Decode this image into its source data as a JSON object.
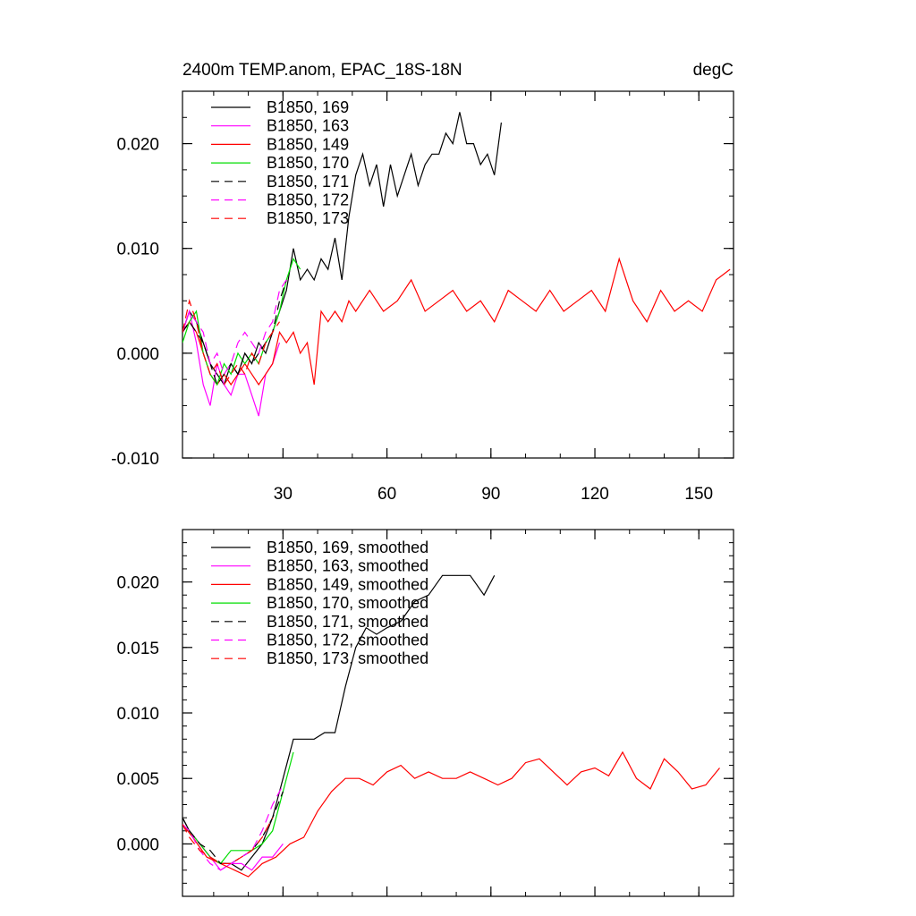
{
  "chart_data": [
    {
      "type": "line",
      "title": "2400m TEMP.anom, EPAC_18S-18N",
      "units": "degC",
      "xlim": [
        1,
        160
      ],
      "ylim": [
        -0.01,
        0.025
      ],
      "xticks": [
        30,
        60,
        90,
        120,
        150
      ],
      "xtick_labels": [
        "30",
        "60",
        "90",
        "120",
        "150"
      ],
      "yticks": [
        -0.01,
        0.0,
        0.01,
        0.02
      ],
      "ytick_labels": [
        "-0.010",
        "0.000",
        "0.010",
        "0.020"
      ],
      "legend_position": "top-left",
      "series": [
        {
          "name": "B1850, 169",
          "color": "#000000",
          "dash": "solid",
          "x": [
            1,
            3,
            5,
            7,
            9,
            11,
            13,
            15,
            17,
            19,
            21,
            23,
            25,
            27,
            29,
            31,
            33,
            35,
            37,
            39,
            41,
            43,
            45,
            47,
            49,
            51,
            53,
            55,
            57,
            59,
            61,
            63,
            65,
            67,
            69,
            71,
            73,
            75,
            77,
            79,
            81,
            83,
            85,
            87,
            89,
            91,
            93
          ],
          "y": [
            0.002,
            0.004,
            0.003,
            0.001,
            -0.001,
            -0.002,
            -0.003,
            -0.001,
            -0.002,
            0.0,
            -0.001,
            0.001,
            0.0,
            0.002,
            0.004,
            0.006,
            0.01,
            0.007,
            0.008,
            0.007,
            0.009,
            0.008,
            0.011,
            0.007,
            0.013,
            0.017,
            0.019,
            0.016,
            0.018,
            0.014,
            0.018,
            0.015,
            0.017,
            0.019,
            0.016,
            0.018,
            0.019,
            0.019,
            0.021,
            0.02,
            0.023,
            0.02,
            0.02,
            0.018,
            0.019,
            0.017,
            0.022
          ]
        },
        {
          "name": "B1850, 163",
          "color": "#ff00ff",
          "dash": "solid",
          "x": [
            1,
            3,
            5,
            7,
            9,
            11,
            13,
            15,
            17,
            19,
            21,
            23,
            25,
            27,
            29
          ],
          "y": [
            0.002,
            0.004,
            0.001,
            -0.003,
            -0.005,
            -0.001,
            -0.003,
            -0.004,
            -0.002,
            -0.002,
            -0.004,
            -0.006,
            -0.002,
            -0.001,
            0.001
          ]
        },
        {
          "name": "B1850, 149",
          "color": "#ff0000",
          "dash": "solid",
          "x": [
            1,
            3,
            5,
            7,
            9,
            11,
            13,
            15,
            17,
            19,
            21,
            23,
            25,
            27,
            29,
            31,
            33,
            35,
            37,
            39,
            41,
            43,
            45,
            47,
            49,
            51,
            55,
            59,
            63,
            67,
            71,
            75,
            79,
            83,
            87,
            91,
            95,
            99,
            103,
            107,
            111,
            115,
            119,
            123,
            127,
            131,
            135,
            139,
            143,
            147,
            151,
            155,
            159
          ],
          "y": [
            0.002,
            0.003,
            0.002,
            0.0,
            -0.002,
            -0.003,
            -0.002,
            -0.003,
            -0.002,
            -0.001,
            -0.002,
            -0.003,
            -0.002,
            -0.001,
            0.002,
            0.001,
            0.002,
            0.0,
            0.001,
            -0.003,
            0.004,
            0.003,
            0.004,
            0.003,
            0.005,
            0.004,
            0.006,
            0.004,
            0.005,
            0.007,
            0.004,
            0.005,
            0.006,
            0.004,
            0.005,
            0.003,
            0.006,
            0.005,
            0.004,
            0.006,
            0.004,
            0.005,
            0.006,
            0.004,
            0.009,
            0.005,
            0.003,
            0.006,
            0.004,
            0.005,
            0.004,
            0.007,
            0.008
          ]
        },
        {
          "name": "B1850, 170",
          "color": "#00dd00",
          "dash": "solid",
          "x": [
            1,
            3,
            5,
            7,
            9,
            11,
            13,
            15,
            17,
            19,
            21,
            23,
            25,
            27,
            29,
            31,
            33,
            35
          ],
          "y": [
            0.001,
            0.003,
            0.004,
            0.0,
            -0.002,
            -0.003,
            -0.001,
            -0.002,
            0.0,
            -0.001,
            0.0,
            -0.001,
            0.001,
            0.002,
            0.004,
            0.007,
            0.009,
            0.008
          ]
        },
        {
          "name": "B1850, 171",
          "color": "#000000",
          "dash": "dashed",
          "x": [
            1,
            3,
            5,
            7,
            9,
            11,
            13,
            15,
            17,
            19,
            21,
            23,
            25,
            27,
            29,
            31
          ],
          "y": [
            0.002,
            0.003,
            0.002,
            0.001,
            -0.001,
            -0.003,
            -0.002,
            -0.001,
            -0.002,
            0.0,
            -0.001,
            0.0,
            0.001,
            0.002,
            0.005,
            0.007
          ]
        },
        {
          "name": "B1850, 172",
          "color": "#ff00ff",
          "dash": "dashed",
          "x": [
            1,
            3,
            5,
            7,
            9,
            11,
            13,
            15,
            17,
            19,
            21,
            23,
            25,
            27,
            29,
            31
          ],
          "y": [
            0.002,
            0.004,
            0.003,
            0.002,
            -0.001,
            0.0,
            -0.002,
            -0.001,
            0.001,
            0.002,
            0.001,
            0.0,
            0.002,
            0.003,
            0.006,
            0.007
          ]
        },
        {
          "name": "B1850, 173",
          "color": "#ff0000",
          "dash": "dashed",
          "x": [
            1,
            3,
            5,
            7,
            9,
            11,
            13,
            15,
            17,
            19,
            21,
            23,
            25,
            27,
            29
          ],
          "y": [
            0.002,
            0.005,
            0.003,
            0.0,
            -0.002,
            -0.001,
            -0.003,
            -0.002,
            -0.001,
            -0.002,
            0.0,
            -0.001,
            0.001,
            0.002,
            0.003
          ]
        }
      ]
    },
    {
      "type": "line",
      "title": "",
      "xlim": [
        1,
        160
      ],
      "ylim": [
        -0.004,
        0.024
      ],
      "xticks": [
        30,
        60,
        90,
        120,
        150
      ],
      "xtick_labels": [
        "",
        "",
        "",
        "",
        ""
      ],
      "yticks": [
        0.0,
        0.005,
        0.01,
        0.015,
        0.02
      ],
      "ytick_labels": [
        "0.000",
        "0.005",
        "0.010",
        "0.015",
        "0.020"
      ],
      "legend_position": "top-left",
      "series": [
        {
          "name": "B1850, 169, smoothed",
          "color": "#000000",
          "dash": "solid",
          "x": [
            1,
            3,
            6,
            9,
            12,
            15,
            18,
            21,
            24,
            27,
            30,
            33,
            36,
            39,
            42,
            45,
            48,
            51,
            54,
            57,
            60,
            64,
            68,
            72,
            76,
            80,
            84,
            88,
            91
          ],
          "y": [
            0.002,
            0.001,
            0.0,
            -0.001,
            -0.0015,
            -0.0015,
            -0.002,
            -0.001,
            0.0,
            0.002,
            0.005,
            0.008,
            0.008,
            0.008,
            0.0085,
            0.0085,
            0.012,
            0.015,
            0.0165,
            0.016,
            0.0165,
            0.017,
            0.0185,
            0.019,
            0.0205,
            0.0205,
            0.0205,
            0.019,
            0.0205
          ]
        },
        {
          "name": "B1850, 163, smoothed",
          "color": "#ff00ff",
          "dash": "solid",
          "x": [
            1,
            3,
            6,
            9,
            12,
            15,
            18,
            21,
            24,
            27,
            30
          ],
          "y": [
            0.0015,
            0.001,
            0.0,
            -0.001,
            -0.002,
            -0.0015,
            -0.0015,
            -0.002,
            -0.001,
            -0.001,
            0.0
          ]
        },
        {
          "name": "B1850, 149, smoothed",
          "color": "#ff0000",
          "dash": "solid",
          "x": [
            1,
            4,
            8,
            12,
            16,
            20,
            24,
            28,
            32,
            36,
            40,
            44,
            48,
            52,
            56,
            60,
            64,
            68,
            72,
            76,
            80,
            84,
            88,
            92,
            96,
            100,
            104,
            108,
            112,
            116,
            120,
            124,
            128,
            132,
            136,
            140,
            144,
            148,
            152,
            156
          ],
          "y": [
            0.0015,
            0.0005,
            -0.001,
            -0.0015,
            -0.002,
            -0.0025,
            -0.0015,
            -0.001,
            0.0,
            0.0005,
            0.0025,
            0.004,
            0.005,
            0.005,
            0.0045,
            0.0055,
            0.006,
            0.005,
            0.0055,
            0.005,
            0.005,
            0.0055,
            0.005,
            0.0045,
            0.005,
            0.0062,
            0.0065,
            0.0055,
            0.0045,
            0.0055,
            0.0058,
            0.0052,
            0.007,
            0.005,
            0.0042,
            0.0065,
            0.0055,
            0.0042,
            0.0045,
            0.0058
          ]
        },
        {
          "name": "B1850, 170, smoothed",
          "color": "#00dd00",
          "dash": "solid",
          "x": [
            1,
            3,
            6,
            9,
            12,
            15,
            18,
            21,
            24,
            27,
            30,
            33
          ],
          "y": [
            0.0015,
            0.001,
            0.0,
            -0.001,
            -0.0015,
            -0.0005,
            -0.0005,
            -0.0005,
            0.0,
            0.001,
            0.004,
            0.007
          ]
        },
        {
          "name": "B1850, 171, smoothed",
          "color": "#000000",
          "dash": "dashed",
          "x": [
            1,
            3,
            6,
            9,
            12,
            15,
            18,
            21,
            24,
            27,
            30
          ],
          "y": [
            0.002,
            0.001,
            0.0,
            -0.0005,
            -0.0015,
            -0.0015,
            -0.001,
            -0.0005,
            0.0005,
            0.002,
            0.004
          ]
        },
        {
          "name": "B1850, 172, smoothed",
          "color": "#ff00ff",
          "dash": "dashed",
          "x": [
            1,
            3,
            6,
            9,
            12,
            15,
            18,
            21,
            24,
            27,
            30
          ],
          "y": [
            0.0015,
            0.001,
            -0.0005,
            -0.0015,
            -0.002,
            -0.0015,
            -0.001,
            -0.0005,
            0.001,
            0.003,
            0.0045
          ]
        },
        {
          "name": "B1850, 173, smoothed",
          "color": "#ff0000",
          "dash": "dashed",
          "x": [
            1,
            3,
            6,
            9,
            12,
            15,
            18,
            21,
            24,
            27
          ],
          "y": [
            0.0015,
            0.0005,
            -0.0005,
            -0.001,
            -0.0015,
            -0.0015,
            -0.001,
            -0.0005,
            0.0005,
            0.002
          ]
        }
      ]
    }
  ]
}
